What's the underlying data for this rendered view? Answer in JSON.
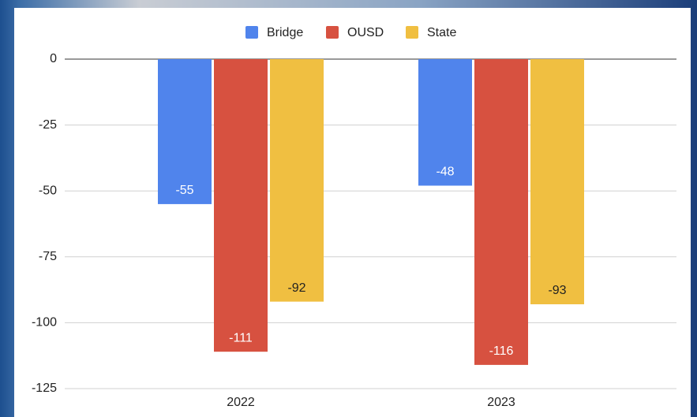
{
  "chart_data": {
    "type": "bar",
    "categories": [
      "2022",
      "2023"
    ],
    "series": [
      {
        "name": "Bridge",
        "color": "#5084ec",
        "values": [
          -55,
          -48
        ]
      },
      {
        "name": "OUSD",
        "color": "#d75140",
        "values": [
          -111,
          -116
        ]
      },
      {
        "name": "State",
        "color": "#f0bf41",
        "values": [
          -92,
          -93
        ]
      }
    ],
    "ylim": [
      -125,
      0
    ],
    "yticks": [
      0,
      -25,
      -50,
      -75,
      -100,
      -125
    ],
    "grid": true,
    "legend": "top"
  }
}
